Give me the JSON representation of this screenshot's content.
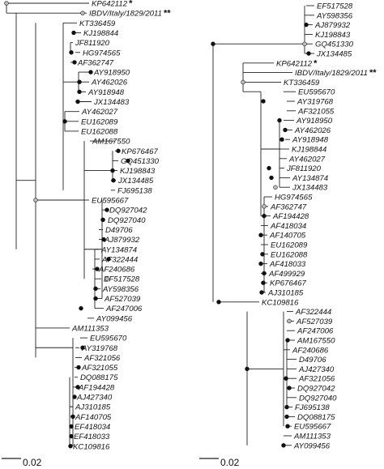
{
  "left_tree": {
    "taxa": [
      "KP642112",
      "IBDV/Italy/1829/2011",
      "KT336459",
      "KJ198844",
      "JF811920",
      "HG974565",
      "AF362747",
      "AY918950",
      "AY462026",
      "AY918948",
      "JX134483",
      "AY462027",
      "EU162089",
      "EU162088",
      "AM167550",
      "KP676467",
      "GQ451330",
      "KJ198843",
      "JX134485",
      "FJ695138",
      "EU595667",
      "DQ927042",
      "DQ927040",
      "D49706",
      "AJ879932",
      "AY134874",
      "AF322444",
      "AF240686",
      "EF517528",
      "AY598356",
      "AF527039",
      "AF247006",
      "AY099456",
      "AM111353",
      "EU595670",
      "AY319768",
      "AF321056",
      "AF321055",
      "DQ088175",
      "AF194428",
      "AJ427340",
      "AJ310185",
      "AF140705",
      "EF418034",
      "EF418033",
      "KC109816"
    ],
    "stars": {
      "KP642112": "*",
      "IBDV/Italy/1829/2011": "**"
    },
    "scale_label": "0.02"
  },
  "right_tree": {
    "taxa": [
      "EF517528",
      "AY598356",
      "AJ879932",
      "KJ198843",
      "GQ451330",
      "JX134485",
      "KP642112",
      "IBDV/Italy/1829/2011",
      "KT336459",
      "EU595670",
      "AY319768",
      "AF321055",
      "AY918950",
      "AY462026",
      "AY918948",
      "KJ198844",
      "AY462027",
      "JF811920",
      "AY134874",
      "JX134483",
      "HG974565",
      "AF362747",
      "AF194428",
      "AF418034",
      "AF140705",
      "EU162089",
      "EU162088",
      "AF418033",
      "AF499929",
      "KP676467",
      "AJ310185",
      "KC109816",
      "AF322444",
      "AF527039",
      "AF247006",
      "AM167550",
      "AF240686",
      "D49706",
      "AJ427340",
      "AF321056",
      "DQ927042",
      "DQ927040",
      "FJ695138",
      "DQ088175",
      "EU595667",
      "AM111353",
      "AY099456"
    ],
    "stars": {
      "KP642112": "*",
      "IBDV/Italy/1829/2011": "**"
    },
    "scale_label": "0.02"
  }
}
